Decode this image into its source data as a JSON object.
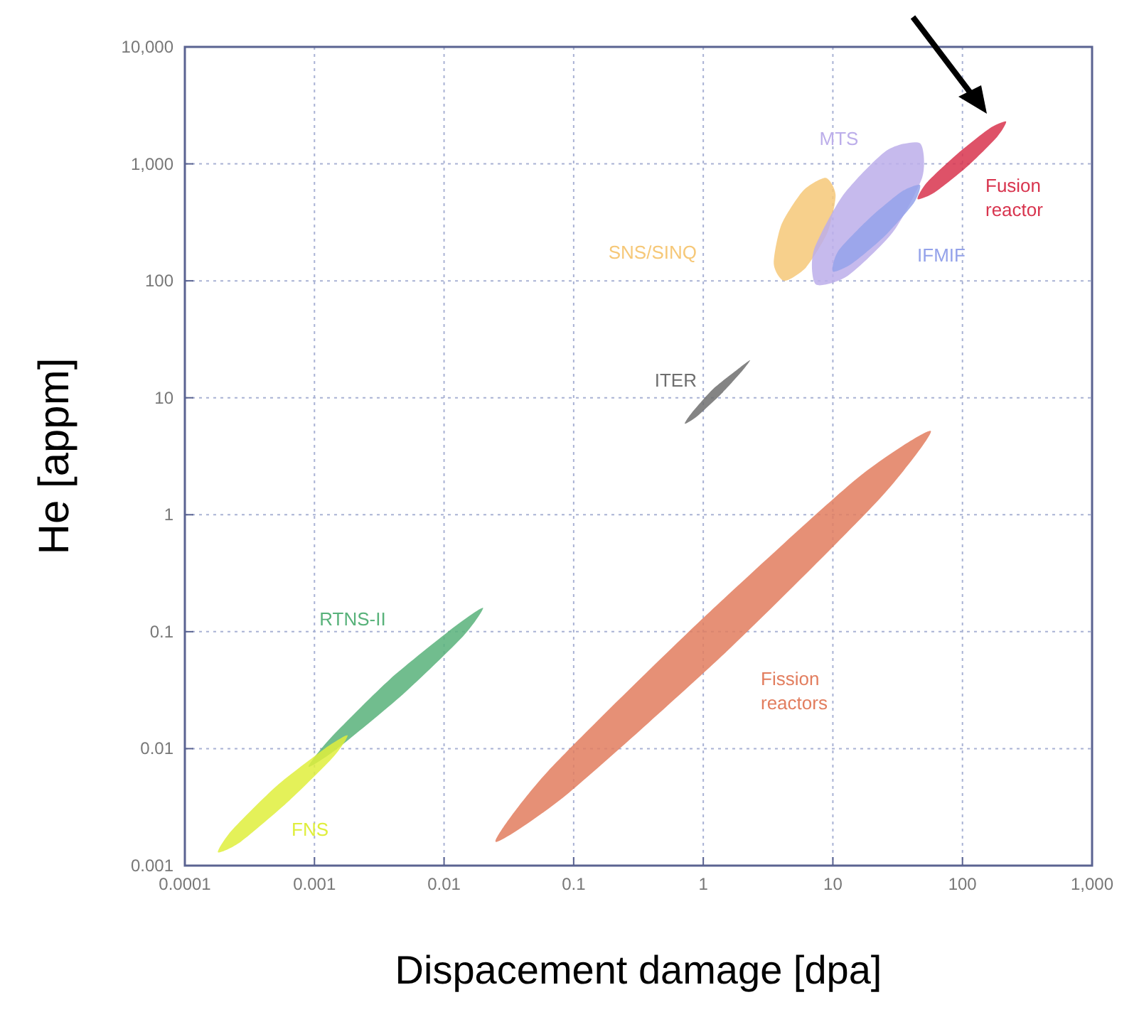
{
  "chart_data": {
    "type": "area",
    "xlabel": "Dispacement damage [dpa]",
    "ylabel": "He [appm]",
    "log": "xy",
    "grid": true,
    "xlim": [
      0.0001,
      1000
    ],
    "ylim": [
      0.001,
      10000
    ],
    "xticks": [
      0.0001,
      0.001,
      0.01,
      0.1,
      1,
      10,
      100,
      {
        "value": 1000,
        "label": "1,000"
      }
    ],
    "yticks": [
      0.001,
      0.01,
      0.1,
      1,
      10,
      100,
      {
        "value": 1000,
        "label": "1,000"
      },
      {
        "value": 10000,
        "label": "10,000"
      }
    ],
    "series": [
      {
        "name": "Fission reactors",
        "color": "#e27d5e",
        "x": [
          57,
          22,
          1.5,
          0.092,
          0.025,
          0.064,
          0.92,
          15
        ],
        "values": [
          5.2,
          1.3,
          0.067,
          0.0042,
          0.0016,
          0.0065,
          0.12,
          2
        ]
      },
      {
        "name": "ITER",
        "color": "#6e6e6e",
        "x": [
          2.3,
          2,
          1.4,
          0.89,
          0.72,
          0.82,
          1.2,
          1.9
        ],
        "values": [
          21,
          17,
          11,
          6.9,
          6,
          7.5,
          12,
          18
        ]
      },
      {
        "name": "RTNS-II",
        "color": "#58b27a",
        "x": [
          0.02,
          0.014,
          0.0048,
          0.0015,
          0.0009,
          0.0013,
          0.0038,
          0.012
        ],
        "values": [
          0.16,
          0.091,
          0.029,
          0.01,
          0.007,
          0.012,
          0.039,
          0.11
        ]
      },
      {
        "name": "FNS",
        "color": "#dfee3c",
        "x": [
          0.0018,
          0.0014,
          0.00064,
          0.00027,
          0.00018,
          0.00023,
          0.00051,
          0.0012
        ],
        "values": [
          0.013,
          0.0085,
          0.0036,
          0.0016,
          0.0013,
          0.002,
          0.0048,
          0.01
        ]
      },
      {
        "name": "SNS/SINQ",
        "color": "#f6c878",
        "x": [
          8.8,
          10.5,
          9.1,
          6.2,
          4.2,
          3.5,
          4,
          5.9
        ],
        "values": [
          760,
          540,
          260,
          130,
          100,
          140,
          300,
          590
        ]
      },
      {
        "name": "MTS",
        "color": "#bcaeea",
        "x": [
          47,
          49,
          29,
          13,
          7.4,
          7.1,
          12,
          26
        ],
        "values": [
          1500,
          770,
          260,
          110,
          93,
          180,
          540,
          1300
        ]
      },
      {
        "name": "IFMIF",
        "color": "#94a2ea",
        "x": [
          47,
          42,
          25,
          14,
          10,
          11,
          19,
          34
        ],
        "values": [
          660,
          460,
          240,
          140,
          120,
          180,
          340,
          580
        ]
      },
      {
        "name": "Fusion reactor",
        "color": "#d8344e",
        "x": [
          217,
          185,
          109,
          61,
          45,
          53,
          90,
          161
        ],
        "values": [
          2300,
          1700,
          950,
          570,
          500,
          690,
          1200,
          2000
        ]
      }
    ]
  }
}
